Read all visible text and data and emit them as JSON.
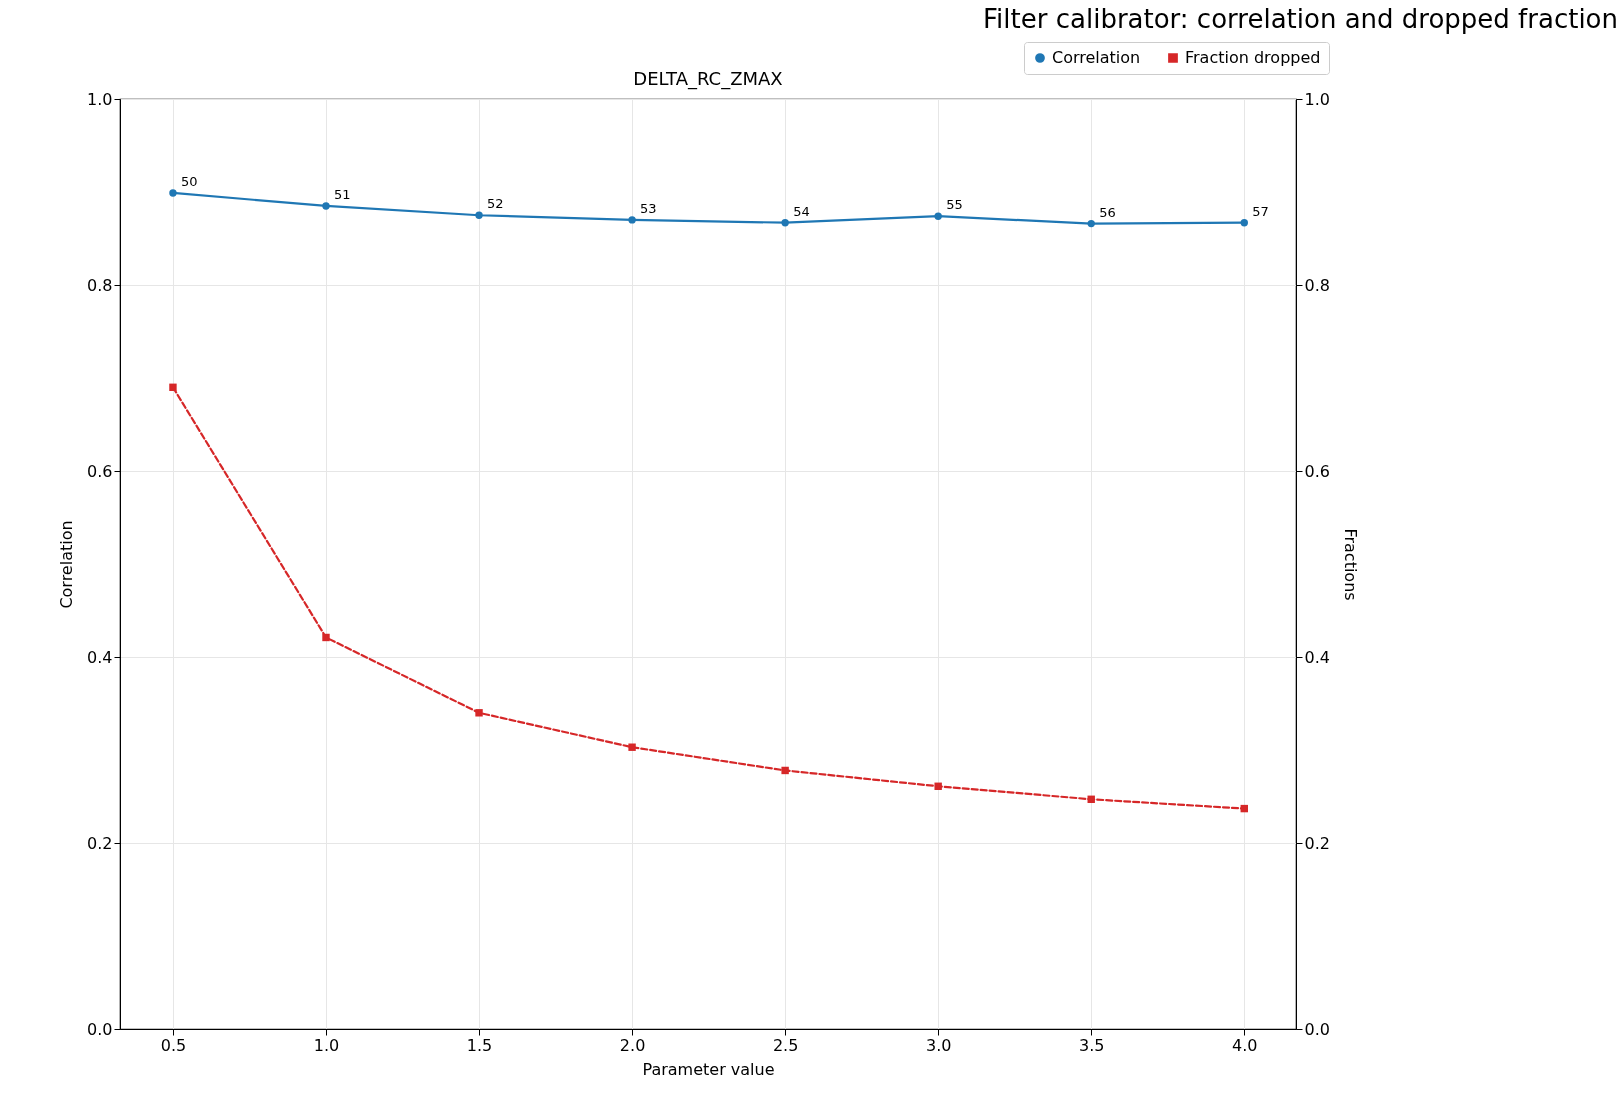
{
  "chart_data": {
    "type": "line",
    "title": "Filter calibrator: correlation and dropped fraction",
    "subtitle": "DELTA_RC_ZMAX",
    "xlabel": "Parameter value",
    "ylabel": "Correlation",
    "y2label": "Fractions",
    "x": [
      0.5,
      1.0,
      1.5,
      2.0,
      2.5,
      3.0,
      3.5,
      4.0
    ],
    "series": [
      {
        "name": "Correlation",
        "color": "#1f77b4",
        "marker": "circle",
        "line_style": "solid",
        "values": [
          0.899,
          0.885,
          0.875,
          0.87,
          0.867,
          0.874,
          0.866,
          0.867
        ]
      },
      {
        "name": "Fraction dropped",
        "color": "#d62728",
        "marker": "square",
        "line_style": "dashed",
        "axis": "y2",
        "values": [
          0.69,
          0.421,
          0.34,
          0.303,
          0.278,
          0.261,
          0.247,
          0.237
        ]
      }
    ],
    "annotations": [
      {
        "text": "50",
        "x": 0.5,
        "y": 0.899
      },
      {
        "text": "51",
        "x": 1.0,
        "y": 0.885
      },
      {
        "text": "52",
        "x": 1.5,
        "y": 0.875
      },
      {
        "text": "53",
        "x": 2.0,
        "y": 0.87
      },
      {
        "text": "54",
        "x": 2.5,
        "y": 0.867
      },
      {
        "text": "55",
        "x": 3.0,
        "y": 0.874
      },
      {
        "text": "56",
        "x": 3.5,
        "y": 0.866
      },
      {
        "text": "57",
        "x": 4.0,
        "y": 0.867
      }
    ],
    "xlim": [
      0.327,
      4.169
    ],
    "xticks": [
      {
        "value": 0.5,
        "label": "0.5"
      },
      {
        "value": 1,
        "label": "1.0"
      },
      {
        "value": 1.5,
        "label": "1.5"
      },
      {
        "value": 2,
        "label": "2.0"
      },
      {
        "value": 2.5,
        "label": "2.5"
      },
      {
        "value": 3,
        "label": "3.0"
      },
      {
        "value": 3.5,
        "label": "3.5"
      },
      {
        "value": 4,
        "label": "4.0"
      }
    ],
    "ylim": [
      0,
      1
    ],
    "yticks": [
      {
        "value": 0,
        "label": "0.0"
      },
      0.2,
      0.4,
      0.6,
      0.8,
      {
        "value": 1,
        "label": "1.0"
      }
    ],
    "y2lim": [
      0,
      1
    ],
    "y2ticks": [
      {
        "value": 0,
        "label": "0.0"
      },
      0.2,
      0.4,
      0.6,
      0.8,
      {
        "value": 1,
        "label": "1.0"
      }
    ],
    "grid": true,
    "legend": "top right"
  }
}
